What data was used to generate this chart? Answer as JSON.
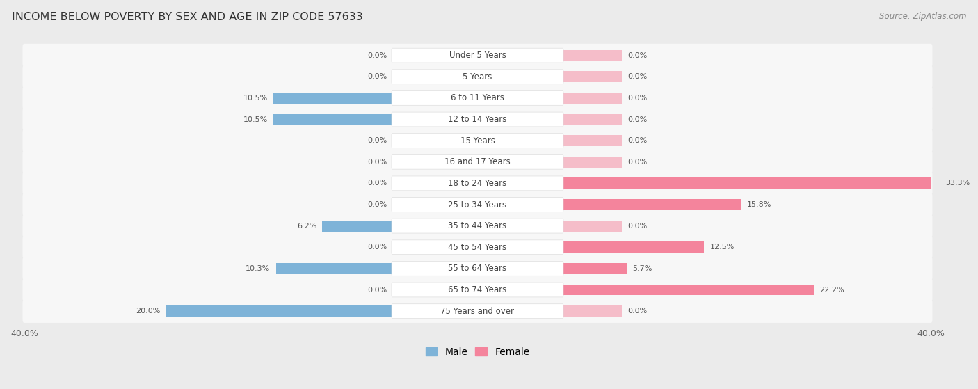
{
  "title": "INCOME BELOW POVERTY BY SEX AND AGE IN ZIP CODE 57633",
  "source": "Source: ZipAtlas.com",
  "categories": [
    "Under 5 Years",
    "5 Years",
    "6 to 11 Years",
    "12 to 14 Years",
    "15 Years",
    "16 and 17 Years",
    "18 to 24 Years",
    "25 to 34 Years",
    "35 to 44 Years",
    "45 to 54 Years",
    "55 to 64 Years",
    "65 to 74 Years",
    "75 Years and over"
  ],
  "male_values": [
    0.0,
    0.0,
    10.5,
    10.5,
    0.0,
    0.0,
    0.0,
    0.0,
    6.2,
    0.0,
    10.3,
    0.0,
    20.0
  ],
  "female_values": [
    0.0,
    0.0,
    0.0,
    0.0,
    0.0,
    0.0,
    33.3,
    15.8,
    0.0,
    12.5,
    5.7,
    22.2,
    0.0
  ],
  "male_color": "#7EB3D8",
  "female_color": "#F4849C",
  "male_label": "Male",
  "female_label": "Female",
  "xlim": 40.0,
  "background_color": "#ebebeb",
  "row_bg_color": "#f7f7f7",
  "title_fontsize": 11.5,
  "source_fontsize": 8.5,
  "legend_fontsize": 10,
  "bar_label_fontsize": 8,
  "cat_label_fontsize": 8.5
}
